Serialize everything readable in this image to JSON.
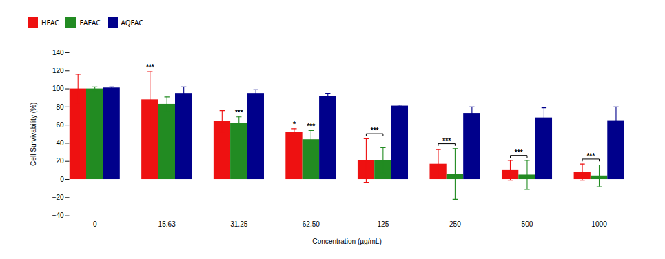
{
  "chart_data": {
    "type": "bar",
    "categories": [
      "0",
      "15.63",
      "31.25",
      "62.50",
      "125",
      "250",
      "500",
      "1000"
    ],
    "series": [
      {
        "name": "HEAC",
        "color": "#EE1111",
        "values": [
          100,
          88,
          64,
          52,
          21,
          17,
          10,
          8
        ],
        "errors": [
          16,
          31,
          12,
          4,
          24,
          16,
          11,
          9
        ]
      },
      {
        "name": "EAEAC",
        "color": "#228B22",
        "values": [
          100,
          83,
          62,
          44,
          21,
          6,
          5,
          4
        ],
        "errors": [
          2,
          8,
          7,
          10,
          14,
          28,
          16,
          12
        ]
      },
      {
        "name": "AQEAC",
        "color": "#00008B",
        "values": [
          101,
          95,
          95,
          92,
          81,
          73,
          68,
          65
        ],
        "errors": [
          1,
          7,
          4,
          3,
          1,
          7,
          11,
          15
        ]
      }
    ],
    "xlabel": "Concentration (µg/mL)",
    "ylabel": "Cell Survivability (%)",
    "ylim": [
      -40,
      140
    ],
    "yticks": [
      -40,
      -20,
      0,
      20,
      40,
      60,
      80,
      100,
      120,
      140
    ],
    "grid": false,
    "annotations": [
      {
        "text": "***",
        "category": "15.63",
        "series": "HEAC"
      },
      {
        "text": "***",
        "category": "31.25",
        "series": "EAEAC"
      },
      {
        "text": "*",
        "category": "62.50",
        "series": "HEAC"
      },
      {
        "text": "***",
        "category": "62.50",
        "series": "EAEAC"
      },
      {
        "text": "***",
        "category": "125",
        "series": [
          "HEAC",
          "EAEAC"
        ]
      },
      {
        "text": "***",
        "category": "250",
        "series": [
          "HEAC",
          "EAEAC"
        ]
      },
      {
        "text": "***",
        "category": "500",
        "series": [
          "HEAC",
          "EAEAC"
        ]
      },
      {
        "text": "***",
        "category": "1000",
        "series": [
          "HEAC",
          "EAEAC"
        ]
      }
    ]
  }
}
